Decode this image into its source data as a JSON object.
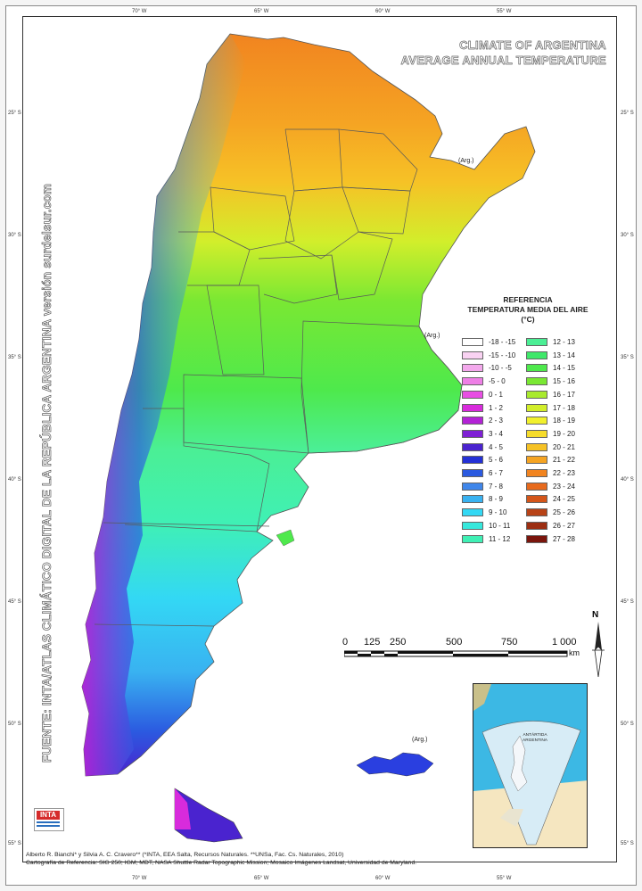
{
  "map": {
    "title_line1": "CLIMATE OF ARGENTINA",
    "title_line2": "AVERAGE ANNUAL TEMPERATURE",
    "side_text": "FUENTE: INTA/ATLAS CLIMÁTICO DIGITAL DE LA REPÚBLICA ARGENTINA versión surdelsur.com",
    "longitudes": [
      "70° W",
      "65° W",
      "60° W",
      "55° W"
    ],
    "latitudes": [
      "25° S",
      "30° S",
      "35° S",
      "40° S",
      "45° S",
      "50° S",
      "55° S"
    ],
    "arg_label": "(Arg.)"
  },
  "legend": {
    "heading_line1": "REFERENCIA",
    "heading_line2": "TEMPERATURA MEDIA DEL AIRE",
    "heading_line3": "(°C)",
    "items": [
      {
        "label": "-18 - -15",
        "color": "#ffffff"
      },
      {
        "label": "-15 - -10",
        "color": "#f9d2f2"
      },
      {
        "label": "-10 - -5",
        "color": "#f3a8ec"
      },
      {
        "label": "-5 - 0",
        "color": "#ee7fe6"
      },
      {
        "label": "0 - 1",
        "color": "#e84ee3"
      },
      {
        "label": "1 - 2",
        "color": "#d82bdc"
      },
      {
        "label": "2 - 3",
        "color": "#b322d6"
      },
      {
        "label": "3 - 4",
        "color": "#7e20d4"
      },
      {
        "label": "4 - 5",
        "color": "#4a23cf"
      },
      {
        "label": "5 - 6",
        "color": "#2431d6"
      },
      {
        "label": "6 - 7",
        "color": "#2b5ae0"
      },
      {
        "label": "7 - 8",
        "color": "#3f86ea"
      },
      {
        "label": "8 - 9",
        "color": "#39b2f1"
      },
      {
        "label": "9 - 10",
        "color": "#33d8f4"
      },
      {
        "label": "10 - 11",
        "color": "#36e8dc"
      },
      {
        "label": "11 - 12",
        "color": "#3ff0b5"
      },
      {
        "label": "12 - 13",
        "color": "#4bef95"
      },
      {
        "label": "13 - 14",
        "color": "#3fe86a"
      },
      {
        "label": "14 - 15",
        "color": "#4ee94c"
      },
      {
        "label": "15 - 16",
        "color": "#7ae833"
      },
      {
        "label": "16 - 17",
        "color": "#a9ea2e"
      },
      {
        "label": "17 - 18",
        "color": "#d2ee2b"
      },
      {
        "label": "18 - 19",
        "color": "#f1f02d"
      },
      {
        "label": "19 - 20",
        "color": "#f6dc2b"
      },
      {
        "label": "20 - 21",
        "color": "#f6c226"
      },
      {
        "label": "21 - 22",
        "color": "#f5a423"
      },
      {
        "label": "22 - 23",
        "color": "#f18420"
      },
      {
        "label": "23 - 24",
        "color": "#e76a1d"
      },
      {
        "label": "24 - 25",
        "color": "#d4561a"
      },
      {
        "label": "25 - 26",
        "color": "#b84317"
      },
      {
        "label": "26 - 27",
        "color": "#9c2e12"
      },
      {
        "label": "27 - 28",
        "color": "#7a150c"
      }
    ]
  },
  "scale": {
    "labels": [
      "0",
      "125",
      "250",
      "500",
      "750",
      "1 000"
    ],
    "unit": "km",
    "north": "N"
  },
  "inset": {
    "label_line1": "ANTÁRTIDA",
    "label_line2": "ARGENTINA"
  },
  "credits": {
    "line1": "Alberto R. Bianchi* y Silvia A. C. Cravero** (*INTA, EEA Salta, Recursos Naturales. **UNSa, Fac. Cs. Naturales, 2010)",
    "line2": "Cartografía de Referencia: SIG 250; IGM; MDT, NASA Shuttle Radar Topographic Mission; Mosaico Imágenes Landsat, Universidad de Maryland."
  },
  "logo": {
    "text": "INTA"
  }
}
